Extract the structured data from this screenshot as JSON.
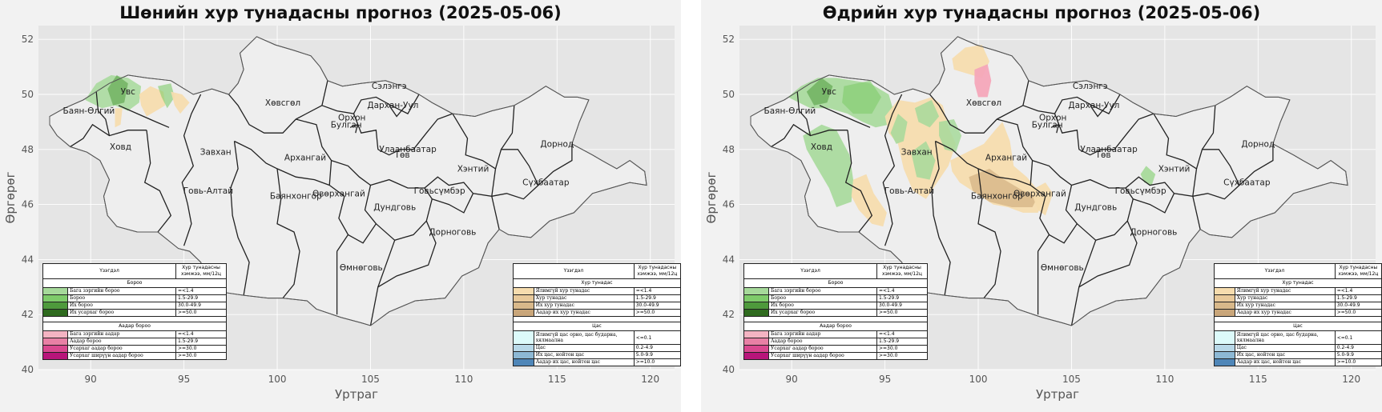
{
  "panels": [
    {
      "title": "Шөнийн хур тунадасны прогноз (2025-05-06)",
      "xlabel": "Уртраг",
      "ylabel": "Өргөрөг",
      "xticks": [
        "90",
        "95",
        "100",
        "105",
        "110",
        "115",
        "120"
      ],
      "yticks": [
        "52",
        "50",
        "48",
        "46",
        "44",
        "42",
        "40"
      ]
    },
    {
      "title": "Өдрийн хур тунадасны прогноз (2025-05-06)",
      "xlabel": "Уртраг",
      "ylabel": "Өргөрөг",
      "xticks": [
        "90",
        "95",
        "100",
        "105",
        "110",
        "115",
        "120"
      ],
      "yticks": [
        "52",
        "50",
        "48",
        "46",
        "44",
        "42",
        "40"
      ]
    }
  ],
  "aimags": [
    {
      "name": "Увс",
      "lon": 92.0,
      "lat": 50.0
    },
    {
      "name": "Баян-Өлгий",
      "lon": 89.9,
      "lat": 49.3
    },
    {
      "name": "Ховд",
      "lon": 91.6,
      "lat": 48.0
    },
    {
      "name": "Завхан",
      "lon": 96.7,
      "lat": 47.8
    },
    {
      "name": "Говь-Алтай",
      "lon": 96.3,
      "lat": 46.4
    },
    {
      "name": "Хөвсгөл",
      "lon": 100.3,
      "lat": 49.6
    },
    {
      "name": "Архангай",
      "lon": 101.5,
      "lat": 47.6
    },
    {
      "name": "Баянхонгор",
      "lon": 101.0,
      "lat": 46.2
    },
    {
      "name": "Өвөрхангай",
      "lon": 103.3,
      "lat": 46.3
    },
    {
      "name": "Булган",
      "lon": 103.7,
      "lat": 48.8
    },
    {
      "name": "Орхон",
      "lon": 104.0,
      "lat": 49.05
    },
    {
      "name": "Сэлэнгэ",
      "lon": 106.0,
      "lat": 50.2
    },
    {
      "name": "Дархан-Уул",
      "lon": 106.2,
      "lat": 49.5
    },
    {
      "name": "Улаанбаатар",
      "lon": 107.0,
      "lat": 47.9
    },
    {
      "name": "Төв",
      "lon": 106.7,
      "lat": 47.7
    },
    {
      "name": "Хэнтий",
      "lon": 110.5,
      "lat": 47.2
    },
    {
      "name": "Дорнод",
      "lon": 115.0,
      "lat": 48.1
    },
    {
      "name": "Сүхбаатар",
      "lon": 114.4,
      "lat": 46.7
    },
    {
      "name": "Дундговь",
      "lon": 106.3,
      "lat": 45.8
    },
    {
      "name": "Говьсүмбэр",
      "lon": 108.7,
      "lat": 46.4
    },
    {
      "name": "Дорноговь",
      "lon": 109.4,
      "lat": 44.9
    },
    {
      "name": "Өмнөговь",
      "lon": 104.5,
      "lat": 43.6
    }
  ],
  "legend_left": {
    "col_phenomenon": "Үзэгдэл",
    "col_amount": "Хур тунадасны хэмжээ, мм/12ц",
    "sections": [
      {
        "heading": "Бороо",
        "rows": [
          {
            "label": "Бага зэргийн бороо",
            "value": "=<1.4",
            "color": "#a6d99a"
          },
          {
            "label": "Бороо",
            "value": "1.5-29.9",
            "color": "#7ecb6a"
          },
          {
            "label": "Их бороо",
            "value": "30.0-49.9",
            "color": "#4e9a3c"
          },
          {
            "label": "Их усархаг бороо",
            "value": ">=50.0",
            "color": "#2f6b1f"
          }
        ]
      },
      {
        "heading": "Аадар бороо",
        "rows": [
          {
            "label": "Бага зэргийн аадар",
            "value": "=<1.4",
            "color": "#f4b3c2"
          },
          {
            "label": "Аадар бороо",
            "value": "1.5-29.9",
            "color": "#e880a5"
          },
          {
            "label": "Усархаг аадар бороо",
            "value": ">=30.0",
            "color": "#d9488f"
          },
          {
            "label": "Усархаг ширүүн аадар бороо",
            "value": ">=30.0",
            "color": "#b8157a"
          }
        ]
      }
    ]
  },
  "legend_right": {
    "col_phenomenon": "Үзэгдэл",
    "col_amount": "Хур тунадасны хэмжээ, мм/12ц",
    "sections": [
      {
        "heading": "Хур тунадас",
        "rows": [
          {
            "label": "Ялимгүй хур тунадас",
            "value": "=<1.4",
            "color": "#f6dcae"
          },
          {
            "label": "Хур тунадас",
            "value": "1.5-29.9",
            "color": "#e8c99a"
          },
          {
            "label": "Их хур тунадас",
            "value": "30.0-49.9",
            "color": "#d8b88a"
          },
          {
            "label": "Аадар их хур тунадас",
            "value": ">=50.0",
            "color": "#c9a67a"
          }
        ]
      },
      {
        "heading": "Цас",
        "rows": [
          {
            "label": "Ялимгүй цас орно, цас бударна, хялмаална",
            "value": "<=0.1",
            "color": "#dcfafa"
          },
          {
            "label": "Цас",
            "value": "0.2-4.9",
            "color": "#b8d8e8"
          },
          {
            "label": "Их цас, нойтон цас",
            "value": "5.0-9.9",
            "color": "#8db8d4"
          },
          {
            "label": "Аадар их цас, нойтон цас",
            "value": ">=10.0",
            "color": "#4f86b8"
          }
        ]
      }
    ]
  },
  "colors": {
    "plot_bg": "#e5e5e5",
    "grid": "#ffffff",
    "land": "#eeeeee",
    "light_green": "#a6d99a",
    "green": "#7ecb6a",
    "dark_green": "#4e9a3c",
    "light_tan": "#f6dcae",
    "tan": "#d8b88a",
    "pink": "#f4a7b9"
  }
}
